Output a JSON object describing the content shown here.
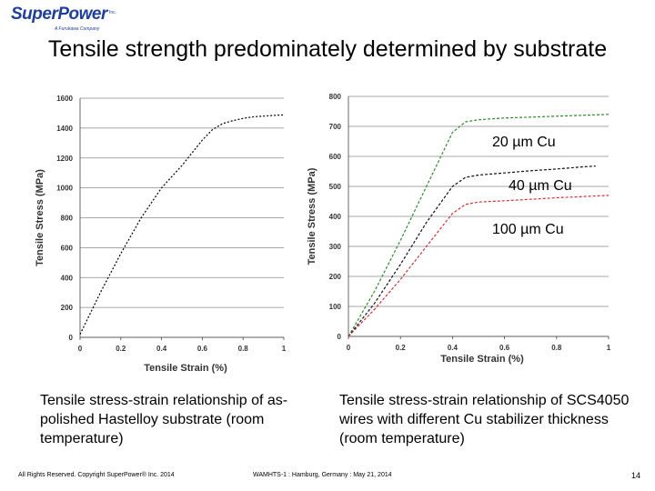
{
  "logo": {
    "name": "SuperPower",
    "inc": "Inc.",
    "subtitle": "A Furukawa Company"
  },
  "title": "Tensile strength predominately determined by substrate",
  "chart_data": [
    {
      "type": "line",
      "title": "",
      "xlabel": "Tensile Strain (%)",
      "ylabel": "Tensile Stress (MPa)",
      "xlim": [
        0,
        1
      ],
      "ylim": [
        0,
        1600
      ],
      "xticks": [
        "0",
        "0.2",
        "0.4",
        "0.6",
        "0.8",
        "1"
      ],
      "yticks": [
        "0",
        "200",
        "400",
        "600",
        "800",
        "1000",
        "1200",
        "1400",
        "1600"
      ],
      "grid": "horizontal",
      "series": [
        {
          "color": "#000000",
          "x": [
            0,
            0.1,
            0.2,
            0.3,
            0.4,
            0.5,
            0.55,
            0.6,
            0.65,
            0.7,
            0.75,
            0.8,
            0.85,
            0.9,
            0.95,
            1.0
          ],
          "y": [
            20,
            300,
            560,
            800,
            1000,
            1150,
            1235,
            1320,
            1390,
            1430,
            1450,
            1465,
            1475,
            1480,
            1485,
            1488
          ]
        }
      ]
    },
    {
      "type": "line",
      "title": "",
      "xlabel": "Tensile Strain (%)",
      "ylabel": "Tensile Stress (MPa)",
      "xlim": [
        0,
        1
      ],
      "ylim": [
        0,
        800
      ],
      "xticks": [
        "0",
        "0.2",
        "0.4",
        "0.6",
        "0.8",
        "1"
      ],
      "yticks": [
        "0",
        "100",
        "200",
        "300",
        "400",
        "500",
        "600",
        "700",
        "800"
      ],
      "grid": "horizontal",
      "series": [
        {
          "name": "20 µm Cu",
          "color": "#2e8b2e",
          "x": [
            0,
            0.1,
            0.2,
            0.3,
            0.4,
            0.45,
            0.5,
            0.6,
            0.7,
            0.8,
            0.9,
            1.0
          ],
          "y": [
            0,
            150,
            320,
            500,
            680,
            715,
            722,
            728,
            731,
            734,
            737,
            740
          ]
        },
        {
          "name": "40 µm Cu",
          "color": "#111111",
          "x": [
            0,
            0.1,
            0.2,
            0.3,
            0.4,
            0.45,
            0.5,
            0.6,
            0.7,
            0.8,
            0.9,
            0.95
          ],
          "y": [
            0,
            110,
            240,
            380,
            500,
            530,
            538,
            545,
            552,
            558,
            565,
            568
          ]
        },
        {
          "name": "100 µm Cu",
          "color": "#cc3333",
          "x": [
            0,
            0.1,
            0.2,
            0.3,
            0.4,
            0.45,
            0.5,
            0.6,
            0.7,
            0.8,
            0.9,
            1.0
          ],
          "y": [
            0,
            90,
            190,
            300,
            410,
            440,
            448,
            452,
            457,
            462,
            466,
            470
          ]
        }
      ]
    }
  ],
  "captions": {
    "left": "Tensile stress-strain relationship of as-polished Hastelloy substrate (room temperature)",
    "right": "Tensile stress-strain relationship of SCS4050 wires with different Cu stabilizer thickness (room temperature)"
  },
  "footer": {
    "copyright": "All Rights Reserved. Copyright SuperPower® Inc. 2014",
    "event": "WAMHTS-1 : Hamburg, Germany : May 21, 2014",
    "page": "14"
  }
}
